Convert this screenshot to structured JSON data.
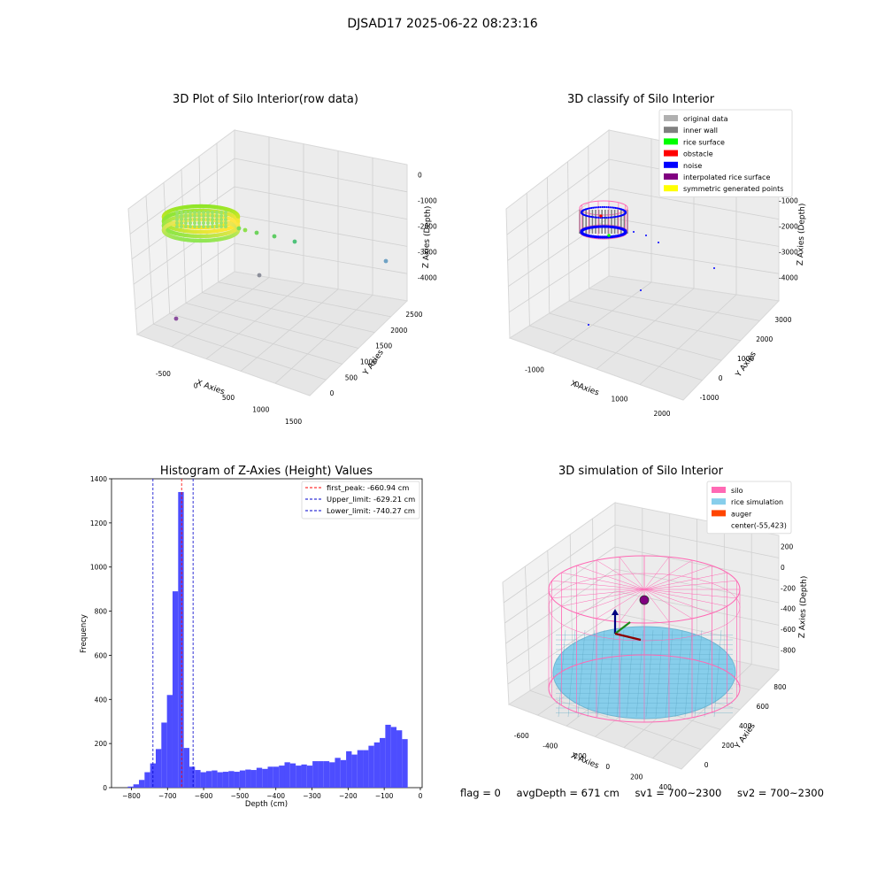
{
  "suptitle": "DJSAD17 2025-06-22 08:23:16",
  "footer": {
    "flag": "flag = 0",
    "avg_depth": "avgDepth = 671 cm",
    "sv1": "sv1 = 700~2300",
    "sv2": "sv2 = 700~2300"
  },
  "colors": {
    "hist_bar": "#4d4dff",
    "peak_line": "#ff0000",
    "limit_line": "#0000cc",
    "silo": "#ff69b4",
    "rice_simulation": "#87ceeb",
    "auger": "#ff4500",
    "original": "#b0b0b0",
    "inner_wall": "#808080",
    "rice_surface": "#00ff00",
    "obstacle": "#ff0000",
    "noise": "#0000ff",
    "interpolated": "#800080",
    "symmetric": "#ffff00"
  },
  "chart_data": [
    {
      "type": "scatter",
      "title": "3D Plot of Silo Interior(row data)",
      "xlabel": "X Axies",
      "ylabel": "Y Axies",
      "zlabel": "Z Axies (Depth)",
      "x_ticks": [
        "-500",
        "0",
        "500",
        "1000",
        "1500"
      ],
      "y_ticks": [
        "0",
        "500",
        "1000",
        "1500",
        "2000",
        "2500"
      ],
      "z_ticks": [
        "0",
        "-1000",
        "-2000",
        "-3000",
        "-4000"
      ],
      "grid": true
    },
    {
      "type": "scatter",
      "title": "3D classify of Silo Interior",
      "xlabel": "X Axies",
      "ylabel": "Y Axies",
      "zlabel": "Z Axies (Depth)",
      "x_ticks": [
        "-1000",
        "0",
        "1000",
        "2000"
      ],
      "y_ticks": [
        "-1000",
        "0",
        "1000",
        "2000",
        "3000"
      ],
      "z_ticks": [
        "0",
        "-1000",
        "-2000",
        "-3000",
        "-4000"
      ],
      "legend_position": "top-right",
      "legend": [
        {
          "label": "original data",
          "color": "#b0b0b0"
        },
        {
          "label": "inner wall",
          "color": "#808080"
        },
        {
          "label": "rice surface",
          "color": "#00ff00"
        },
        {
          "label": "obstacle",
          "color": "#ff0000"
        },
        {
          "label": "noise",
          "color": "#0000ff"
        },
        {
          "label": "interpolated rice surface",
          "color": "#800080"
        },
        {
          "label": "symmetric generated points",
          "color": "#ffff00"
        }
      ],
      "grid": true
    },
    {
      "type": "bar",
      "title": "Histogram of Z-Axies (Height) Values",
      "xlabel": "Depth (cm)",
      "ylabel": "Frequency",
      "xlim": [
        -855,
        5
      ],
      "ylim": [
        0,
        1400
      ],
      "x_ticks": [
        -800,
        -700,
        -600,
        -500,
        -400,
        -300,
        -200,
        -100,
        0
      ],
      "y_ticks": [
        0,
        200,
        400,
        600,
        800,
        1000,
        1200,
        1400
      ],
      "bin_start": -810,
      "bin_width": 15.5,
      "values": [
        5,
        15,
        35,
        70,
        110,
        175,
        295,
        420,
        890,
        1340,
        180,
        95,
        80,
        70,
        75,
        78,
        70,
        72,
        75,
        72,
        78,
        82,
        80,
        90,
        85,
        95,
        95,
        100,
        115,
        110,
        100,
        105,
        100,
        120,
        120,
        120,
        115,
        135,
        125,
        165,
        150,
        170,
        170,
        190,
        205,
        225,
        285,
        275,
        260,
        220
      ],
      "lines": [
        {
          "label": "first_peak: -660.94 cm",
          "x": -660.94,
          "color": "#ff0000"
        },
        {
          "label": "Upper_limit: -629.21 cm",
          "x": -629.21,
          "color": "#0000cc"
        },
        {
          "label": "Lower_limit: -740.27 cm",
          "x": -740.27,
          "color": "#0000cc"
        }
      ],
      "legend_position": "top-right"
    },
    {
      "type": "scatter",
      "title": "3D simulation of Silo Interior",
      "xlabel": "X Axies",
      "ylabel": "Y Axies",
      "zlabel": "Z Axies (Depth)",
      "x_ticks": [
        "-600",
        "-400",
        "-200",
        "0",
        "200",
        "400"
      ],
      "y_ticks": [
        "0",
        "200",
        "400",
        "600",
        "800"
      ],
      "z_ticks": [
        "200",
        "0",
        "-200",
        "-400",
        "-600",
        "-800"
      ],
      "legend_position": "top-right",
      "legend": [
        {
          "label": "silo",
          "color": "#ff69b4"
        },
        {
          "label": "rice simulation",
          "color": "#87ceeb"
        },
        {
          "label": "auger",
          "color": "#ff4500"
        },
        {
          "label": "center(-55,423)",
          "color": ""
        }
      ],
      "grid": true
    }
  ]
}
